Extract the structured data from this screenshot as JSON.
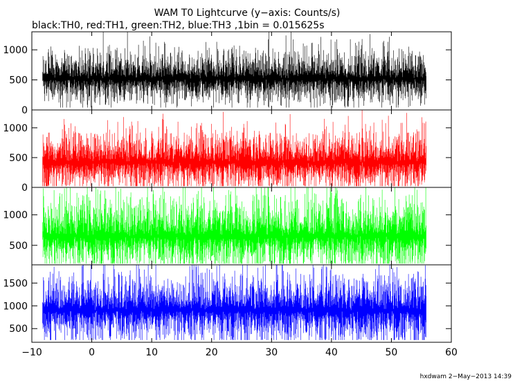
{
  "chart_data": {
    "type": "line",
    "title": "WAM T0 Lightcurve (y−axis: Counts/s)",
    "subtitle": "black:TH0, red:TH1, green:TH2, blue:TH3 ,1bin = 0.015625s",
    "x_range": [
      -10,
      60
    ],
    "x_ticks": [
      "−10",
      "0",
      "10",
      "20",
      "30",
      "40",
      "50",
      "60"
    ],
    "x_tick_values": [
      -10,
      0,
      10,
      20,
      30,
      40,
      50,
      60
    ],
    "data_x_range": [
      -8.2,
      55.8
    ],
    "grid": false,
    "panels": [
      {
        "name": "TH0",
        "color": "#000000",
        "ylim": [
          0,
          1300
        ],
        "y_ticks": [
          0,
          500,
          1000
        ],
        "y_tick_labels": [
          "0",
          "500",
          "1000"
        ],
        "mean": 520,
        "spread": 150,
        "min_floor": 40,
        "max_peak": 1300
      },
      {
        "name": "TH1",
        "color": "#ff0000",
        "ylim": [
          0,
          1300
        ],
        "y_ticks": [
          0,
          500,
          1000
        ],
        "y_tick_labels": [
          "0",
          "500",
          "1000"
        ],
        "mean": 420,
        "spread": 170,
        "min_floor": 20,
        "max_peak": 1300
      },
      {
        "name": "TH2",
        "color": "#00ff00",
        "ylim": [
          180,
          1450
        ],
        "y_ticks": [
          500,
          1000
        ],
        "y_tick_labels": [
          "500",
          "1000"
        ],
        "mean": 650,
        "spread": 210,
        "min_floor": 200,
        "max_peak": 1450
      },
      {
        "name": "TH3",
        "color": "#0000ff",
        "ylim": [
          200,
          1900
        ],
        "y_ticks": [
          500,
          1000,
          1500
        ],
        "y_tick_labels": [
          "500",
          "1000",
          "1500"
        ],
        "mean": 900,
        "spread": 260,
        "min_floor": 250,
        "max_peak": 1900
      }
    ],
    "footer": "hxdwam  2−May−2013 14:39"
  }
}
